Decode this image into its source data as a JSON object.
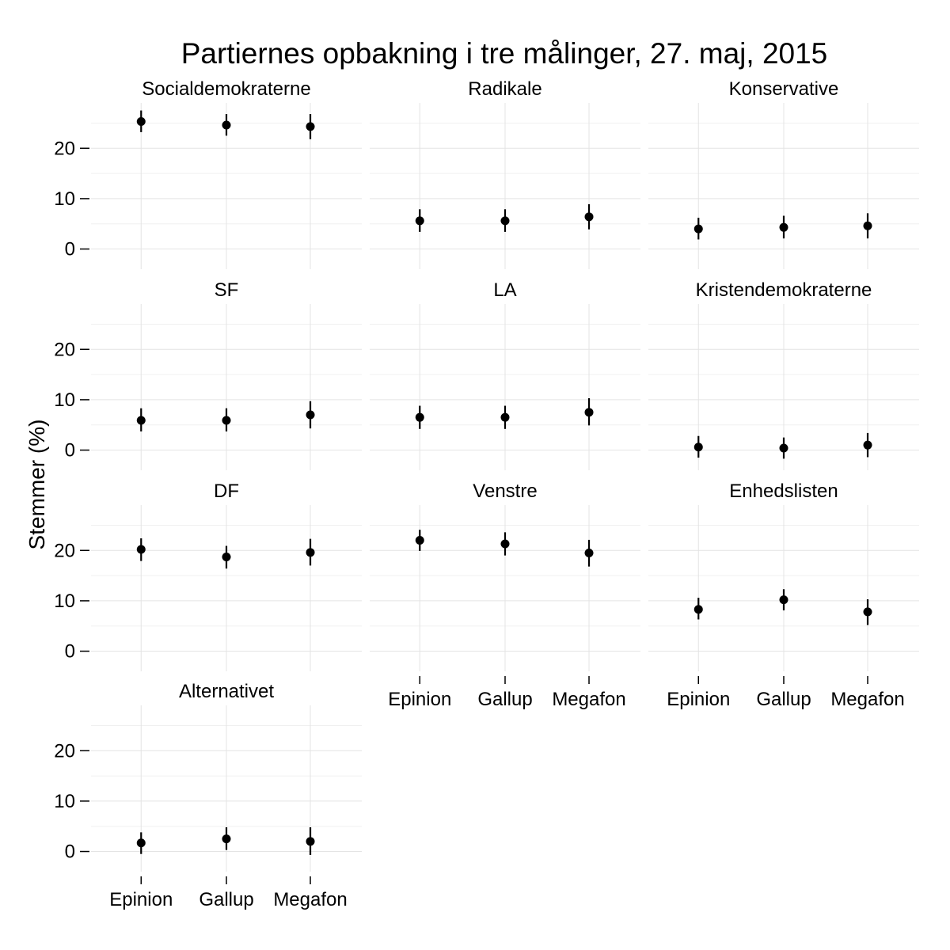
{
  "chart_data": {
    "type": "scatter",
    "title": "Partiernes opbakning i tre målinger, 27. maj, 2015",
    "xlabel": "",
    "ylabel": "Stemmer (%)",
    "ylim": [
      -4,
      29
    ],
    "yticks": [
      0,
      10,
      20
    ],
    "categories": [
      "Epinion",
      "Gallup",
      "Megafon"
    ],
    "grid": true,
    "legend": "none",
    "marker": "point with vertical error bar (interval)",
    "panels": [
      {
        "name": "Socialdemokraterne",
        "values": [
          25.3,
          24.6,
          24.3
        ],
        "low": [
          23.2,
          22.5,
          21.8
        ],
        "high": [
          27.5,
          26.8,
          26.8
        ]
      },
      {
        "name": "Radikale",
        "values": [
          5.6,
          5.6,
          6.4
        ],
        "low": [
          3.4,
          3.4,
          3.9
        ],
        "high": [
          7.9,
          7.9,
          8.9
        ]
      },
      {
        "name": "Konservative",
        "values": [
          4.0,
          4.3,
          4.6
        ],
        "low": [
          1.9,
          2.1,
          2.1
        ],
        "high": [
          6.2,
          6.6,
          7.1
        ]
      },
      {
        "name": "SF",
        "values": [
          5.9,
          5.9,
          7.0
        ],
        "low": [
          3.7,
          3.7,
          4.3
        ],
        "high": [
          8.3,
          8.3,
          9.7
        ]
      },
      {
        "name": "LA",
        "values": [
          6.5,
          6.5,
          7.5
        ],
        "low": [
          4.2,
          4.2,
          4.9
        ],
        "high": [
          8.8,
          8.8,
          10.3
        ]
      },
      {
        "name": "Kristendemokraterne",
        "values": [
          0.6,
          0.4,
          1.0
        ],
        "low": [
          -1.5,
          -1.7,
          -1.4
        ],
        "high": [
          2.8,
          2.5,
          3.4
        ]
      },
      {
        "name": "DF",
        "values": [
          20.2,
          18.7,
          19.6
        ],
        "low": [
          17.9,
          16.4,
          17.0
        ],
        "high": [
          22.4,
          20.9,
          22.3
        ]
      },
      {
        "name": "Venstre",
        "values": [
          22.0,
          21.3,
          19.5
        ],
        "low": [
          19.9,
          19.0,
          16.8
        ],
        "high": [
          24.1,
          23.6,
          22.1
        ]
      },
      {
        "name": "Enhedslisten",
        "values": [
          8.3,
          10.2,
          7.8
        ],
        "low": [
          6.3,
          8.1,
          5.2
        ],
        "high": [
          10.6,
          12.3,
          10.3
        ]
      },
      {
        "name": "Alternativet",
        "values": [
          1.7,
          2.5,
          2.0
        ],
        "low": [
          -0.5,
          0.3,
          -0.7
        ],
        "high": [
          3.8,
          4.8,
          4.8
        ]
      }
    ]
  }
}
